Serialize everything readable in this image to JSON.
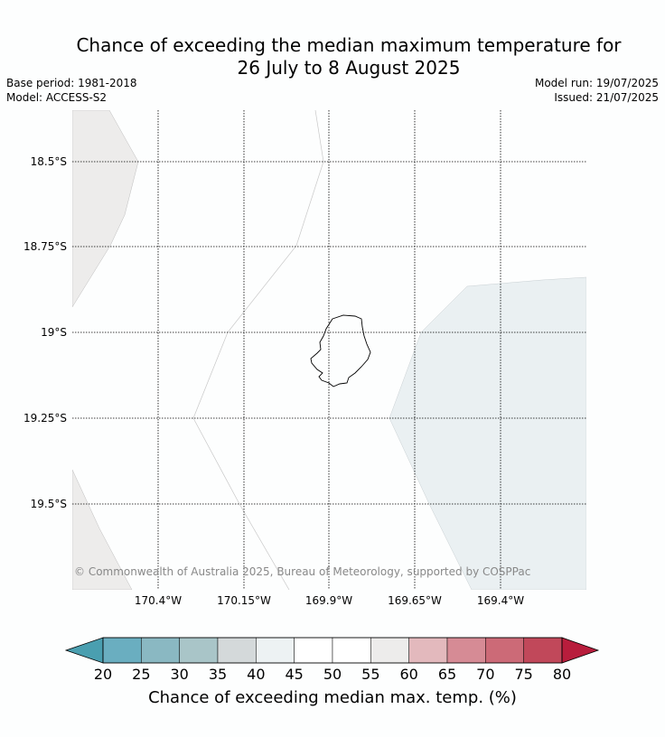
{
  "header": {
    "title_line1": "Chance of exceeding the median maximum temperature for",
    "title_line2": "26 July to 8 August 2025",
    "base_period": "Base period: 1981-2018",
    "model": "Model: ACCESS-S2",
    "model_run": "Model run: 19/07/2025",
    "issued": "Issued: 21/07/2025"
  },
  "map": {
    "lat_labels": [
      "18.5°S",
      "18.75°S",
      "19°S",
      "19.25°S",
      "19.5°S"
    ],
    "lon_labels": [
      "170.4°W",
      "170.15°W",
      "169.9°W",
      "169.65°W",
      "169.4°W"
    ],
    "copyright": "© Commonwealth of Australia 2025, Bureau of Meteorology, supported by COSPPac",
    "region_colors": {
      "low_west": "#edeceb",
      "east": "#eaf0f2",
      "base": "#fdfefe"
    }
  },
  "colorbar": {
    "title": "Chance of exceeding median max. temp. (%)",
    "ticks": [
      "20",
      "25",
      "30",
      "35",
      "40",
      "45",
      "50",
      "55",
      "60",
      "65",
      "70",
      "75",
      "80"
    ],
    "colors": [
      "#4a9fb0",
      "#6aaec0",
      "#8ab8c2",
      "#a9c5c8",
      "#d4d9da",
      "#edf2f3",
      "#ffffff",
      "#ffffff",
      "#edeceb",
      "#e3b9bd",
      "#d68b95",
      "#cc6a77",
      "#c1485a",
      "#b81d3c"
    ]
  }
}
